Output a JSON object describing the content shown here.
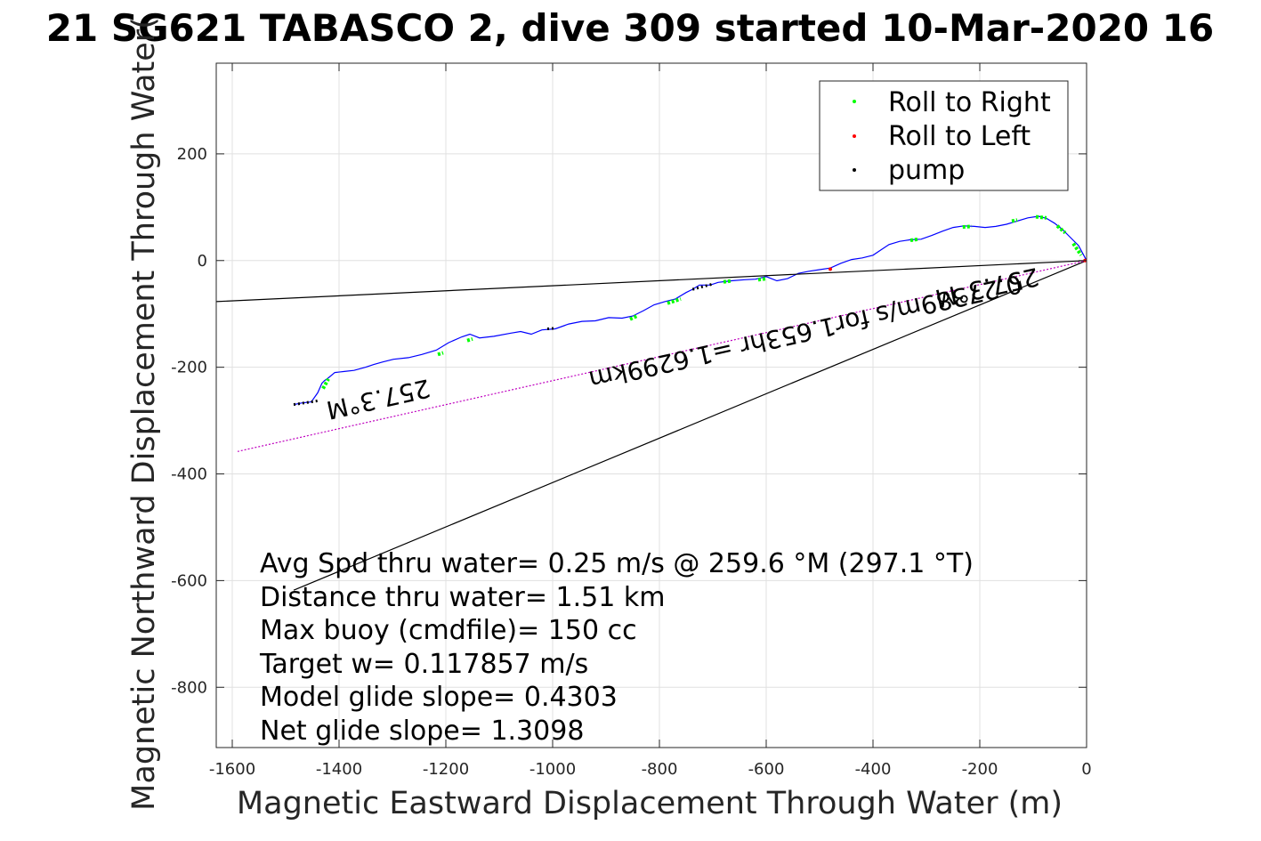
{
  "chart_data": {
    "type": "line",
    "title": "21 SG621 TABASCO 2, dive 309 started 10-Mar-2020 16",
    "xlabel": "Magnetic Eastward Displacement Through Water (m)",
    "ylabel": "Magnetic Northward Displacement Through Water(",
    "xlim": [
      -1630,
      0
    ],
    "ylim": [
      -913,
      370
    ],
    "xticks": [
      -1600,
      -1400,
      -1200,
      -1000,
      -800,
      -600,
      -400,
      -200,
      0
    ],
    "xtick_labels": [
      "-1600",
      "-1400",
      "-1200",
      "-1000",
      "-800",
      "-600",
      "-400",
      "-200",
      "0"
    ],
    "yticks": [
      200,
      0,
      -200,
      -400,
      -600,
      -800
    ],
    "ytick_labels": [
      "200",
      "0",
      "-200",
      "-400",
      "-600",
      "-800"
    ],
    "grid": true,
    "legend_position": "top-right",
    "colors": {
      "track": "#0000ff",
      "roll_right": "#00ff00",
      "roll_left": "#ff0000",
      "pump": "#000000",
      "heading_line": "#000000",
      "avg_line": "#bf00bf"
    },
    "legend": [
      {
        "label": "Roll to Right",
        "color": "#00ff00"
      },
      {
        "label": "Roll to Left",
        "color": "#ff0000"
      },
      {
        "label": "pump",
        "color": "#000000"
      }
    ],
    "series": [
      {
        "kind": "track",
        "color": "#0000ff",
        "x": [
          -1485,
          -1470,
          -1452,
          -1440,
          -1432,
          -1427,
          -1420,
          -1408,
          -1390,
          -1372,
          -1350,
          -1335,
          -1318,
          -1298,
          -1270,
          -1245,
          -1218,
          -1195,
          -1170,
          -1155,
          -1137,
          -1110,
          -1078,
          -1060,
          -1040,
          -1020,
          -995,
          -970,
          -945,
          -920,
          -895,
          -870,
          -850,
          -830,
          -810,
          -790,
          -770,
          -750,
          -738,
          -725,
          -705,
          -690,
          -665,
          -640,
          -620,
          -600,
          -580,
          -560,
          -540,
          -520,
          -500,
          -480,
          -460,
          -440,
          -420,
          -400,
          -385,
          -370,
          -350,
          -330,
          -310,
          -290,
          -270,
          -250,
          -230,
          -210,
          -190,
          -170,
          -150,
          -130,
          -110,
          -90,
          -75,
          -60,
          -45,
          -35,
          -25,
          -15,
          -8,
          0
        ],
        "y": [
          -270,
          -267,
          -265,
          -248,
          -230,
          -225,
          -220,
          -210,
          -208,
          -206,
          -200,
          -195,
          -190,
          -185,
          -182,
          -176,
          -168,
          -154,
          -143,
          -138,
          -145,
          -142,
          -136,
          -133,
          -138,
          -130,
          -128,
          -119,
          -114,
          -113,
          -107,
          -108,
          -104,
          -94,
          -83,
          -77,
          -72,
          -60,
          -54,
          -46,
          -46,
          -41,
          -38,
          -36,
          -35,
          -30,
          -38,
          -34,
          -24,
          -20,
          -17,
          -14,
          -5,
          2,
          5,
          10,
          20,
          30,
          36,
          39,
          40,
          47,
          55,
          62,
          65,
          64,
          62,
          64,
          68,
          74,
          80,
          83,
          79,
          70,
          58,
          48,
          38,
          28,
          15,
          0
        ]
      },
      {
        "kind": "heading",
        "label": "257.3°M",
        "color": "#000000",
        "x": [
          0,
          -1630
        ],
        "y": [
          0,
          -77
        ]
      },
      {
        "kind": "heading",
        "label": "257.3°M",
        "color": "#000000",
        "x": [
          0,
          -1485
        ],
        "y": [
          0,
          -618
        ]
      },
      {
        "kind": "average",
        "label": "0.27389m/s for1.653hr =1.6299km",
        "color": "#bf00bf",
        "x": [
          0,
          -1590
        ],
        "y": [
          0,
          -358
        ]
      }
    ],
    "roll_right_segments": [
      {
        "x": [
          -1430,
          -1420
        ],
        "y": [
          -240,
          -222
        ]
      },
      {
        "x": [
          -1215,
          -1205
        ],
        "y": [
          -176,
          -173
        ]
      },
      {
        "x": [
          -1160,
          -1150
        ],
        "y": [
          -150,
          -147
        ]
      },
      {
        "x": [
          -855,
          -842
        ],
        "y": [
          -110,
          -104
        ]
      },
      {
        "x": [
          -785,
          -760
        ],
        "y": [
          -80,
          -72
        ]
      },
      {
        "x": [
          -680,
          -665
        ],
        "y": [
          -40,
          -38
        ]
      },
      {
        "x": [
          -615,
          -600
        ],
        "y": [
          -36,
          -34
        ]
      },
      {
        "x": [
          -330,
          -315
        ],
        "y": [
          38,
          40
        ]
      },
      {
        "x": [
          -232,
          -215
        ],
        "y": [
          63,
          64
        ]
      },
      {
        "x": [
          -140,
          -130
        ],
        "y": [
          74,
          76
        ]
      },
      {
        "x": [
          -95,
          -75
        ],
        "y": [
          82,
          80
        ]
      },
      {
        "x": [
          -55,
          -40
        ],
        "y": [
          65,
          52
        ]
      },
      {
        "x": [
          -25,
          -10
        ],
        "y": [
          32,
          10
        ]
      }
    ],
    "roll_left_points": [
      {
        "x": -480,
        "y": -16
      },
      {
        "x": -3,
        "y": 0
      }
    ],
    "pump_segments": [
      {
        "x": [
          -1485,
          -1440
        ],
        "y": [
          -270,
          -263
        ]
      },
      {
        "x": [
          -1010,
          -995
        ],
        "y": [
          -128,
          -127
        ]
      },
      {
        "x": [
          -738,
          -700
        ],
        "y": [
          -54,
          -44
        ]
      }
    ],
    "annotations": [
      {
        "text": "257.3°M",
        "at_data": [
          -1330,
          -244
        ],
        "rotation": 167.3
      },
      {
        "text": "257.3°M",
        "at_data": [
          -190,
          -35
        ],
        "rotation": 167.3
      },
      {
        "text": "0.27389m/s for1.653hr =1.6299km",
        "at_data": [
          -530,
          -118
        ],
        "rotation": 167.3
      }
    ],
    "info_lines": [
      "Avg Spd thru water=  0.25 m/s @ 259.6 °M (297.1 °T)",
      "Distance thru water=  1.51 km",
      "Max buoy (cmdfile)= 150 cc",
      "Target w= 0.117857 m/s",
      "Model glide slope= 0.4303",
      "Net glide slope= 1.3098"
    ]
  }
}
